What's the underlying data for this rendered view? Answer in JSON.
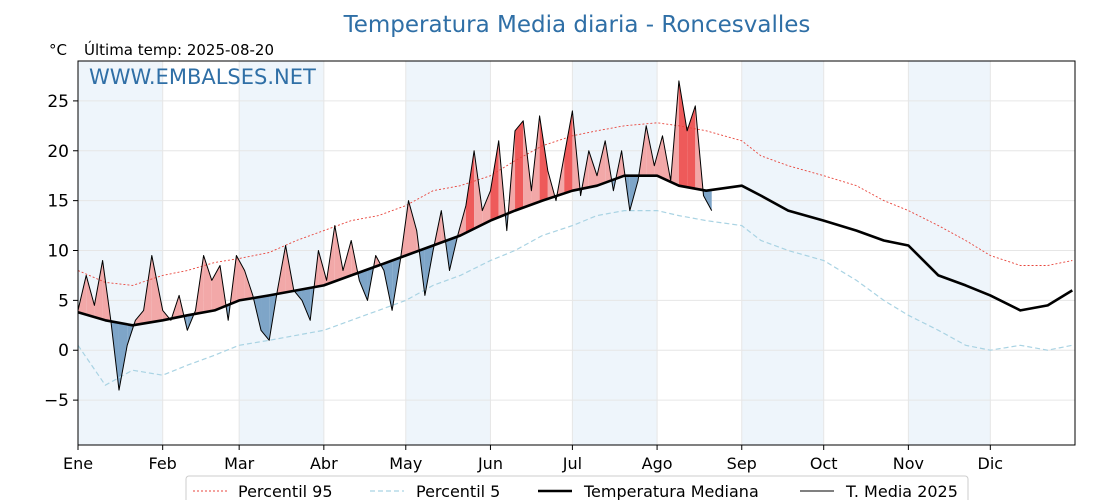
{
  "title": "Temperatura Media diaria - Roncesvalles",
  "unit_label": "°C",
  "last_temp_label": "Última temp: 2025-08-20",
  "watermark": "WWW.EMBALSES.NET",
  "colors": {
    "title": "#2f6fa6",
    "p95": "#e8453c",
    "p5": "#a9d3e3",
    "median": "#000000",
    "media2025": "#000000",
    "fill_above": "#f2a8a8",
    "fill_above_strong": "#ee5a5a",
    "fill_below": "#7ea5c8",
    "fill_below_strong": "#1f5a9a",
    "month_band": "#eef5fb",
    "grid": "#e6e6e6"
  },
  "chart_data": {
    "type": "line",
    "title": "Temperatura Media diaria - Roncesvalles",
    "ylabel": "°C",
    "ylim": [
      -9.5,
      29
    ],
    "xlim": [
      0,
      365
    ],
    "yticks": [
      -5,
      0,
      5,
      10,
      15,
      20,
      25
    ],
    "ytick_labels": [
      "−5",
      "0",
      "5",
      "10",
      "15",
      "20",
      "25"
    ],
    "month_labels": [
      "Ene",
      "Feb",
      "Mar",
      "Abr",
      "May",
      "Jun",
      "Jul",
      "Ago",
      "Sep",
      "Oct",
      "Nov",
      "Dic"
    ],
    "month_starts": [
      0,
      31,
      59,
      90,
      120,
      151,
      181,
      212,
      243,
      273,
      304,
      334
    ],
    "grid": true,
    "legend": {
      "position": "bottom",
      "entries": [
        "Percentil 95",
        "Percentil 5",
        "Temperatura Mediana",
        "T. Media 2025"
      ]
    },
    "series": [
      {
        "name": "Percentil 95",
        "style": "dotted-red",
        "x": [
          0,
          10,
          20,
          31,
          40,
          50,
          59,
          70,
          80,
          90,
          100,
          110,
          120,
          130,
          140,
          151,
          160,
          170,
          181,
          190,
          200,
          212,
          220,
          230,
          243,
          250,
          260,
          273,
          285,
          295,
          304,
          315,
          325,
          334,
          345,
          355,
          364
        ],
        "y": [
          8.0,
          6.8,
          6.5,
          7.5,
          8.0,
          8.8,
          9.2,
          9.8,
          11.0,
          12.0,
          13.0,
          13.5,
          14.5,
          16.0,
          16.5,
          17.5,
          19.0,
          20.5,
          21.5,
          22.0,
          22.5,
          22.8,
          22.5,
          22.0,
          21.0,
          19.5,
          18.5,
          17.5,
          16.5,
          15.0,
          14.0,
          12.5,
          11.0,
          9.5,
          8.5,
          8.5,
          9.0
        ]
      },
      {
        "name": "Percentil 5",
        "style": "dashed-lightblue",
        "x": [
          0,
          10,
          20,
          31,
          40,
          50,
          59,
          70,
          80,
          90,
          100,
          110,
          120,
          130,
          140,
          151,
          160,
          170,
          181,
          190,
          200,
          212,
          220,
          230,
          243,
          250,
          260,
          273,
          285,
          295,
          304,
          315,
          325,
          334,
          345,
          355,
          364
        ],
        "y": [
          0.5,
          -3.5,
          -2.0,
          -2.5,
          -1.5,
          -0.5,
          0.5,
          1.0,
          1.5,
          2.0,
          3.0,
          4.0,
          5.0,
          6.5,
          7.5,
          9.0,
          10.0,
          11.5,
          12.5,
          13.5,
          14.0,
          14.0,
          13.5,
          13.0,
          12.5,
          11.0,
          10.0,
          9.0,
          7.0,
          5.0,
          3.5,
          2.0,
          0.5,
          0.0,
          0.5,
          0.0,
          0.5
        ]
      },
      {
        "name": "Temperatura Mediana",
        "style": "thick-black",
        "x": [
          0,
          10,
          20,
          31,
          40,
          50,
          59,
          70,
          80,
          90,
          100,
          110,
          120,
          130,
          140,
          151,
          160,
          170,
          181,
          190,
          200,
          212,
          220,
          230,
          243,
          250,
          260,
          273,
          285,
          295,
          304,
          315,
          325,
          334,
          345,
          355,
          364
        ],
        "y": [
          3.8,
          3.0,
          2.5,
          3.0,
          3.5,
          4.0,
          5.0,
          5.5,
          6.0,
          6.5,
          7.5,
          8.5,
          9.5,
          10.5,
          11.5,
          13.0,
          14.0,
          15.0,
          16.0,
          16.5,
          17.5,
          17.5,
          16.5,
          16.0,
          16.5,
          15.5,
          14.0,
          13.0,
          12.0,
          11.0,
          10.5,
          7.5,
          6.5,
          5.5,
          4.0,
          4.5,
          6.0
        ]
      },
      {
        "name": "T. Media 2025",
        "style": "thin-black",
        "x": [
          0,
          3,
          6,
          9,
          12,
          15,
          18,
          21,
          24,
          27,
          31,
          34,
          37,
          40,
          43,
          46,
          49,
          52,
          55,
          58,
          61,
          64,
          67,
          70,
          73,
          76,
          79,
          82,
          85,
          88,
          91,
          94,
          97,
          100,
          103,
          106,
          109,
          112,
          115,
          118,
          121,
          124,
          127,
          130,
          133,
          136,
          139,
          142,
          145,
          148,
          151,
          154,
          157,
          160,
          163,
          166,
          169,
          172,
          175,
          178,
          181,
          184,
          187,
          190,
          193,
          196,
          199,
          202,
          205,
          208,
          211,
          214,
          217,
          220,
          223,
          226,
          229,
          232
        ],
        "y": [
          4.0,
          7.5,
          4.5,
          9.0,
          3.0,
          -4.0,
          0.5,
          3.0,
          4.0,
          9.5,
          4.0,
          3.0,
          5.5,
          2.0,
          4.0,
          9.5,
          7.0,
          8.5,
          3.0,
          9.5,
          8.0,
          5.5,
          2.0,
          1.0,
          6.0,
          10.5,
          6.0,
          5.0,
          3.0,
          10.0,
          7.0,
          12.5,
          8.0,
          11.0,
          7.0,
          5.0,
          9.5,
          8.0,
          4.0,
          9.0,
          15.0,
          12.0,
          5.5,
          10.0,
          14.0,
          8.0,
          11.5,
          14.5,
          20.0,
          14.0,
          16.0,
          21.0,
          12.0,
          22.0,
          23.0,
          16.0,
          23.5,
          18.0,
          15.0,
          19.5,
          24.0,
          15.5,
          20.0,
          17.5,
          21.0,
          16.0,
          20.0,
          14.0,
          17.0,
          22.5,
          18.5,
          21.5,
          17.0,
          27.0,
          22.0,
          24.5,
          15.5,
          14.0
        ]
      }
    ]
  },
  "legend_labels": {
    "p95": "Percentil 95",
    "p5": "Percentil 5",
    "median": "Temperatura Mediana",
    "media2025": "T. Media 2025"
  }
}
